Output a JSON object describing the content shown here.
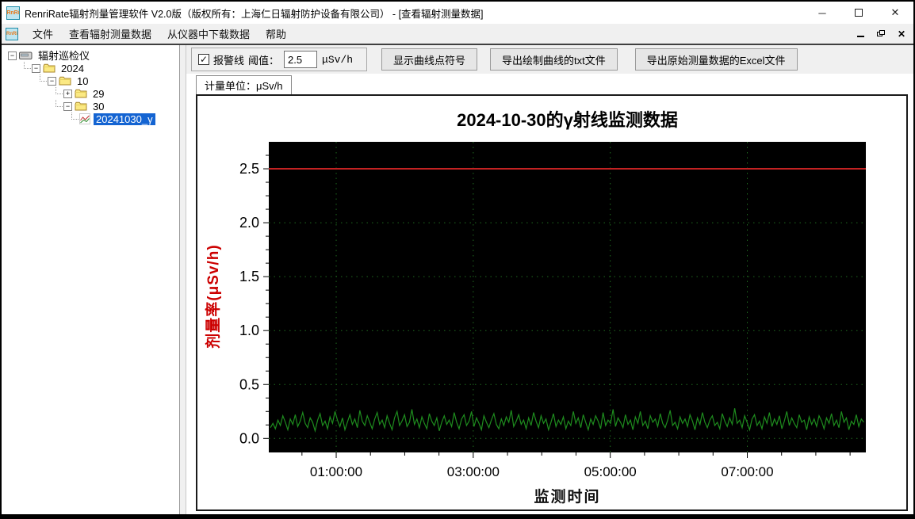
{
  "window": {
    "title": "RenriRate辐射剂量管理软件 V2.0版（版权所有：上海仁日辐射防护设备有限公司） - [查看辐射测量数据]",
    "app_icon_text": "RnRi"
  },
  "icons": {
    "minimize": "─",
    "close": "✕",
    "expander_minus": "−",
    "expander_plus": "+",
    "checkbox_check": "✓"
  },
  "menu": {
    "items": [
      "文件",
      "查看辐射测量数据",
      "从仪器中下载数据",
      "帮助"
    ]
  },
  "tree": {
    "nodes": [
      {
        "label": "辐射巡检仪",
        "level": 0,
        "expander": "minus",
        "icon": "device",
        "selected": false
      },
      {
        "label": "2024",
        "level": 1,
        "expander": "minus",
        "icon": "folder",
        "selected": false
      },
      {
        "label": "10",
        "level": 2,
        "expander": "minus",
        "icon": "folder",
        "selected": false
      },
      {
        "label": "29",
        "level": 3,
        "expander": "plus",
        "icon": "folder",
        "selected": false
      },
      {
        "label": "30",
        "level": 3,
        "expander": "minus",
        "icon": "folder",
        "selected": false
      },
      {
        "label": "20241030_γ",
        "level": 4,
        "expander": "none",
        "icon": "chart",
        "selected": true
      }
    ]
  },
  "controls": {
    "alarm_line_label": "报警线",
    "alarm_checked": true,
    "threshold_label": "阈值：",
    "threshold_value": "2.5",
    "unit": "μSv/h",
    "show_points_button": "显示曲线点符号",
    "export_txt_button": "导出绘制曲线的txt文件",
    "export_excel_button": "导出原始测量数据的Excel文件"
  },
  "tab": {
    "label": "计量单位：μSv/h"
  },
  "chart_data": {
    "type": "line",
    "title": "2024-10-30的γ射线监测数据",
    "xlabel": "监测时间",
    "ylabel": "剂量率(μSv/h)",
    "ylabel_color": "#cc0000",
    "plot_bg": "#000000",
    "grid_color": "#1f6b1f",
    "grid_style": "dotted",
    "ylim": [
      -0.13,
      2.75
    ],
    "xlim_hours": [
      0.016,
      8.73
    ],
    "y_ticks": [
      0.0,
      0.5,
      1.0,
      1.5,
      2.0,
      2.5
    ],
    "y_tick_labels": [
      "0.0",
      "0.5",
      "1.0",
      "1.5",
      "2.0",
      "2.5"
    ],
    "y_minor_step": 0.125,
    "x_tick_hours": [
      1,
      3,
      5,
      7
    ],
    "x_tick_labels": [
      "01:00:00",
      "03:00:00",
      "05:00:00",
      "07:00:00"
    ],
    "x_minor_step_hours": 0.5,
    "alarm_line": {
      "value": 2.5,
      "color": "#c32222"
    },
    "series": [
      {
        "name": "剂量率",
        "color": "#1e8c1e",
        "x_start_hour": 0.04,
        "x_end_hour": 8.7,
        "values": [
          0.1,
          0.14,
          0.09,
          0.17,
          0.12,
          0.21,
          0.15,
          0.08,
          0.18,
          0.13,
          0.22,
          0.11,
          0.16,
          0.24,
          0.14,
          0.1,
          0.19,
          0.15,
          0.07,
          0.17,
          0.23,
          0.12,
          0.16,
          0.09,
          0.2,
          0.14,
          0.25,
          0.17,
          0.11,
          0.19,
          0.08,
          0.15,
          0.22,
          0.13,
          0.18,
          0.1,
          0.26,
          0.16,
          0.12,
          0.21,
          0.15,
          0.09,
          0.18,
          0.24,
          0.13,
          0.17,
          0.1,
          0.21,
          0.14,
          0.08,
          0.19,
          0.25,
          0.12,
          0.16,
          0.22,
          0.11,
          0.15,
          0.27,
          0.13,
          0.18,
          0.1,
          0.2,
          0.14,
          0.09,
          0.23,
          0.16,
          0.12,
          0.19,
          0.07,
          0.15,
          0.21,
          0.13,
          0.17,
          0.11,
          0.24,
          0.15,
          0.09,
          0.18,
          0.22,
          0.12,
          0.16,
          0.25,
          0.11,
          0.19,
          0.14,
          0.08,
          0.21,
          0.15,
          0.1,
          0.17,
          0.23,
          0.13,
          0.09,
          0.18,
          0.12,
          0.2,
          0.15,
          0.26,
          0.11,
          0.16,
          0.22,
          0.13,
          0.17,
          0.09,
          0.19,
          0.12,
          0.24,
          0.16,
          0.1,
          0.21,
          0.14,
          0.18,
          0.08,
          0.15,
          0.23,
          0.11,
          0.17,
          0.13,
          0.2,
          0.09,
          0.16,
          0.12,
          0.25,
          0.14,
          0.19,
          0.1,
          0.22,
          0.15,
          0.08,
          0.18,
          0.13,
          0.21,
          0.16,
          0.09,
          0.24,
          0.12,
          0.17,
          0.14,
          0.27,
          0.11,
          0.19,
          0.15,
          0.1,
          0.22,
          0.13,
          0.17,
          0.08,
          0.2,
          0.14,
          0.25,
          0.12,
          0.16,
          0.09,
          0.21,
          0.15,
          0.18,
          0.11,
          0.23,
          0.14,
          0.1,
          0.17,
          0.26,
          0.12,
          0.15,
          0.09,
          0.2,
          0.14,
          0.18,
          0.11,
          0.22,
          0.16,
          0.08,
          0.19,
          0.13,
          0.24,
          0.15,
          0.1,
          0.17,
          0.21,
          0.12,
          0.15,
          0.09,
          0.23,
          0.16,
          0.11,
          0.19,
          0.13,
          0.28,
          0.14,
          0.17,
          0.1,
          0.21,
          0.15,
          0.08,
          0.18,
          0.22,
          0.12,
          0.16,
          0.09,
          0.2,
          0.14,
          0.24,
          0.11,
          0.18,
          0.13,
          0.21,
          0.09,
          0.16,
          0.25,
          0.12,
          0.19,
          0.14,
          0.1,
          0.22,
          0.15,
          0.17,
          0.08,
          0.2,
          0.13,
          0.18,
          0.11,
          0.21,
          0.16,
          0.09,
          0.19,
          0.14,
          0.23,
          0.12,
          0.17,
          0.1,
          0.25,
          0.15,
          0.19,
          0.08,
          0.16,
          0.13,
          0.22,
          0.11,
          0.18,
          0.15
        ]
      }
    ]
  }
}
